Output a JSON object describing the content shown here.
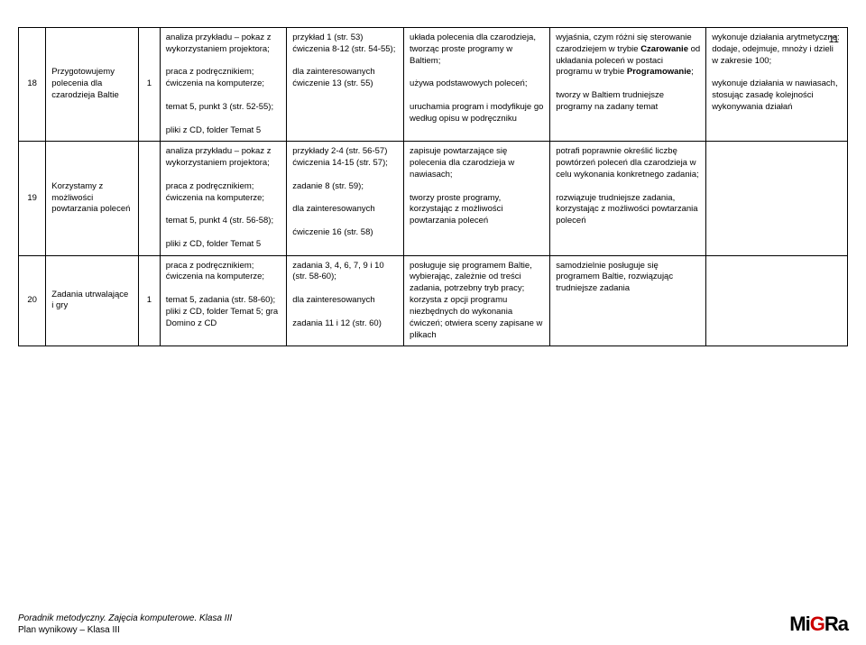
{
  "page_number": "11",
  "rows": [
    {
      "num": "18",
      "topic": "Przygotowujemy polecenia dla czarodzieja Baltie",
      "count": "1",
      "methods": "analiza przykładu – pokaz z wykorzystaniem projektora;\n\npraca z podręcznikiem; ćwiczenia na komputerze;\n\ntemat 5, punkt 3 (str. 52-55);\n\npliki z CD, folder Temat 5",
      "exercises": "przykład 1 (str. 53)\nćwiczenia 8-12 (str. 54-55);\n\ndla zainteresowanych\nćwiczenie 13 (str. 55)",
      "basic": "układa polecenia dla czarodzieja, tworząc proste programy w Baltiem;\n\nużywa podstawowych poleceń;\n\nuruchamia program i modyfikuje go według opisu w podręczniku",
      "extended": "wyjaśnia, czym różni się sterowanie czarodziejem w trybie <b>Czarowanie</b> od układania poleceń w postaci programu w trybie <b>Programowanie</b>;\n\ntworzy w Baltiem trudniejsze programy na zadany temat",
      "high": "wykonuje działania arytmetyczne: dodaje, odejmuje, mnoży i dzieli w zakresie 100;\n\nwykonuje działania w nawiasach, stosując zasadę kolejności wykonywania działań"
    },
    {
      "num": "19",
      "topic": "Korzystamy z możliwości powtarzania poleceń",
      "count": "",
      "methods": "analiza przykładu – pokaz z wykorzystaniem projektora;\n\npraca z podręcznikiem; ćwiczenia na komputerze;\n\ntemat 5, punkt 4 (str. 56-58);\n\npliki z CD, folder Temat 5",
      "exercises": "przykłady 2-4 (str. 56-57)\nćwiczenia 14-15 (str. 57);\n\nzadanie 8 (str. 59);\n\ndla zainteresowanych\n\nćwiczenie 16 (str. 58)",
      "basic": "zapisuje powtarzające się polecenia dla czarodzieja w nawiasach;\n\ntworzy proste programy, korzystając z możliwości powtarzania poleceń",
      "extended": "potrafi poprawnie określić liczbę powtórzeń poleceń dla czarodzieja w celu wykonania konkretnego zadania;\n\nrozwiązuje trudniejsze zadania, korzystając z możliwości powtarzania poleceń",
      "high": ""
    },
    {
      "num": "20",
      "topic": "Zadania utrwalające i gry",
      "count": "1",
      "methods": "praca z podręcznikiem; ćwiczenia na komputerze;\n\ntemat 5, zadania (str. 58-60); pliki z CD, folder Temat 5; gra Domino z CD",
      "exercises": "zadania 3, 4, 6, 7, 9 i 10 (str. 58-60);\n\ndla zainteresowanych\n\nzadania 11 i 12 (str. 60)",
      "basic": "posługuje się programem Baltie, wybierając, zależnie od treści zadania, potrzebny tryb pracy; korzysta z opcji programu niezbędnych do wykonania ćwiczeń; otwiera sceny zapisane w plikach",
      "extended": "samodzielnie posługuje się programem Baltie, rozwiązując trudniejsze zadania",
      "high": ""
    }
  ],
  "footer": {
    "line1": "Poradnik metodyczny. Zajęcia komputerowe. Klasa III",
    "line2": "Plan wynikowy – Klasa III",
    "logo_mi": "Mi",
    "logo_g": "G",
    "logo_ra": "Ra"
  }
}
